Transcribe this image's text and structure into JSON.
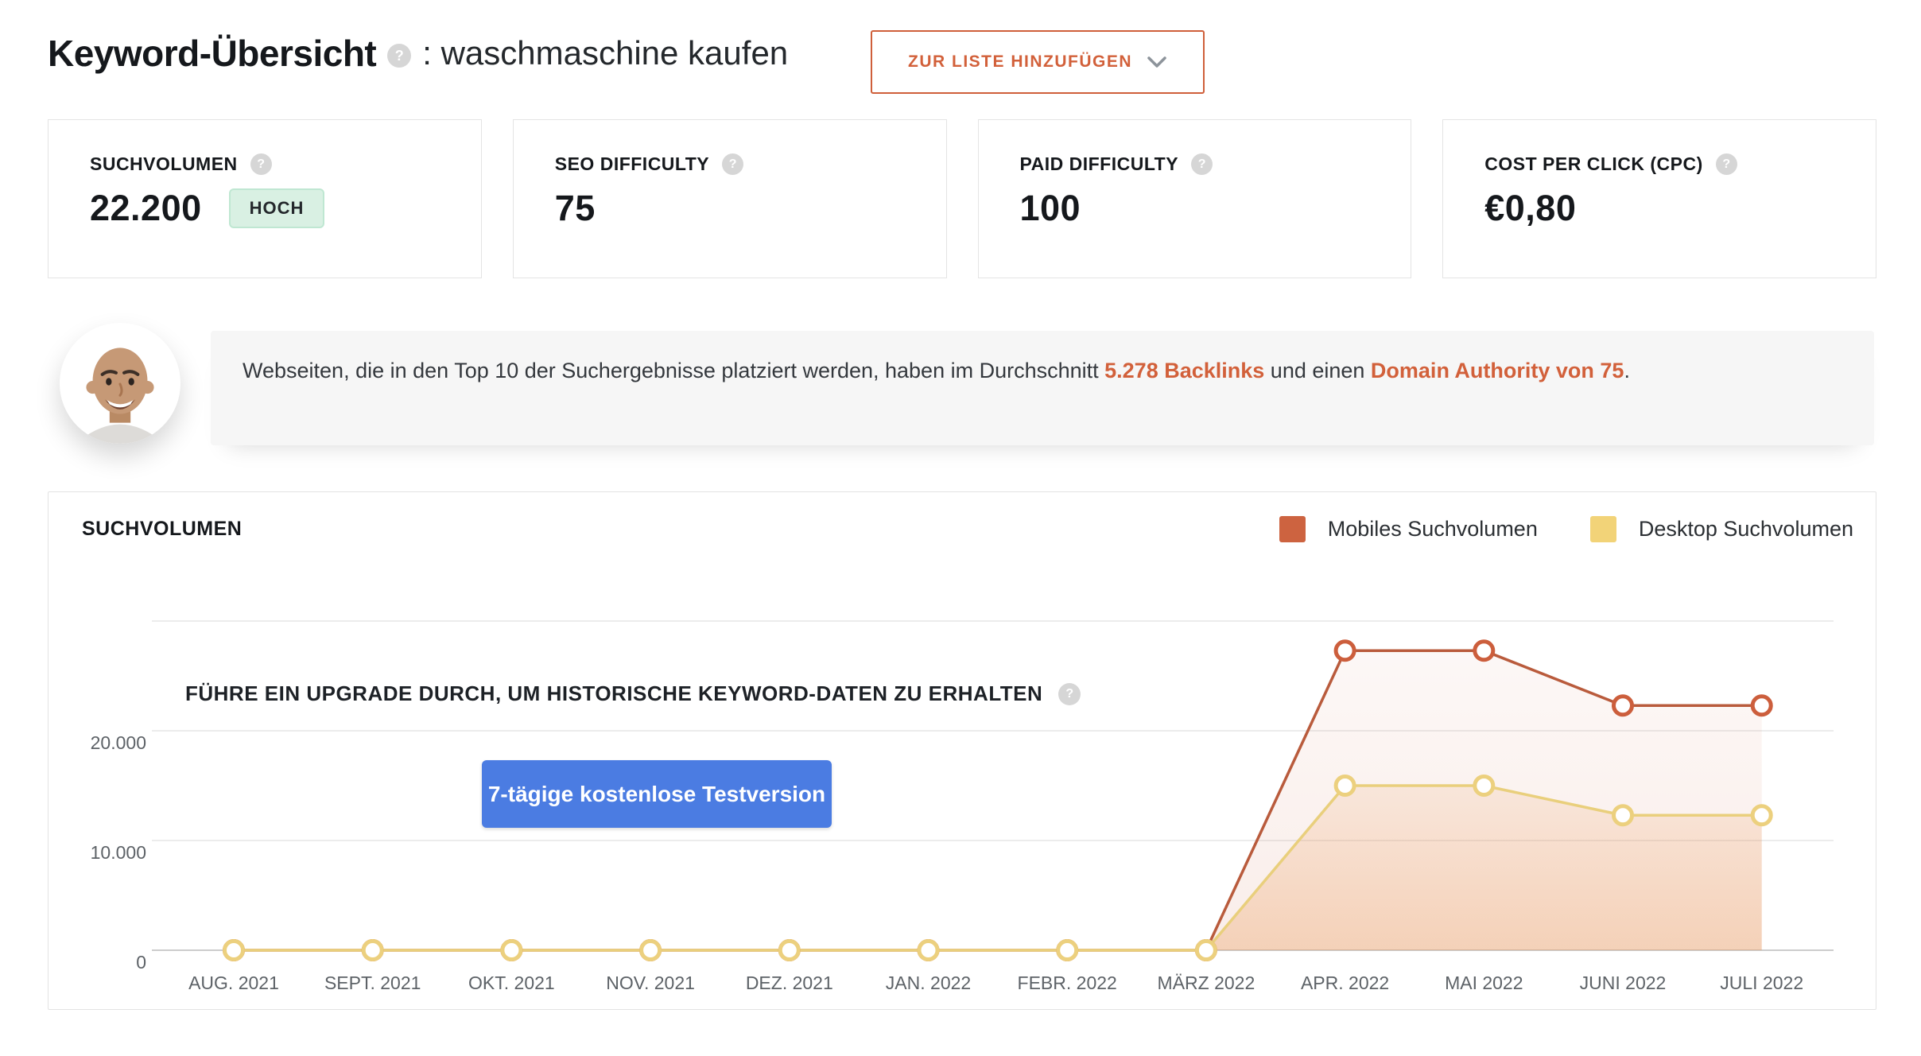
{
  "header": {
    "title": "Keyword-Übersicht",
    "keyword_part": ": waschmaschine kaufen",
    "help_icon": "?",
    "add_button": {
      "label": "ZUR LISTE HINZUFÜGEN",
      "chevron_icon": "chevron-down"
    }
  },
  "metric_cards": [
    {
      "label": "SUCHVOLUMEN",
      "help_icon": "?",
      "value": "22.200",
      "badge": "HOCH"
    },
    {
      "label": "SEO DIFFICULTY",
      "help_icon": "?",
      "value": "75"
    },
    {
      "label": "PAID DIFFICULTY",
      "help_icon": "?",
      "value": "100"
    },
    {
      "label": "COST PER CLICK (CPC)",
      "help_icon": "?",
      "value": "€0,80"
    }
  ],
  "tip": {
    "text_before": "Webseiten, die in den Top 10 der Suchergebnisse platziert werden, haben im Durchschnitt ",
    "link_backlinks": "5.278 Backlinks",
    "text_middle": " und einen ",
    "link_domain": "Domain Authority von 75",
    "text_after": "."
  },
  "chart_panel": {
    "title": "SUCHVOLUMEN",
    "legend": [
      {
        "label": "Mobiles Suchvolumen",
        "color": "#cd6340"
      },
      {
        "label": "Desktop Suchvolumen",
        "color": "#f2d378"
      }
    ],
    "upgrade": {
      "headline": "FÜHRE EIN UPGRADE DURCH, UM HISTORISCHE KEYWORD-DATEN ZU ERHALTEN",
      "help_icon": "?",
      "button_label": "7-tägige kostenlose Testversion"
    },
    "chart_data": {
      "type": "line",
      "categories": [
        "AUG. 2021",
        "SEPT. 2021",
        "OKT. 2021",
        "NOV. 2021",
        "DEZ. 2021",
        "JAN. 2022",
        "FEBR. 2022",
        "MÄRZ 2022",
        "APR. 2022",
        "MAI 2022",
        "JUNI 2022",
        "JULI 2022"
      ],
      "series": [
        {
          "name": "Mobiles Suchvolumen",
          "line_color": "#b95b3c",
          "point_color": "#cc5e3c",
          "values": [
            0,
            0,
            0,
            0,
            0,
            0,
            0,
            0,
            27300,
            27300,
            22300,
            22300
          ]
        },
        {
          "name": "Desktop Suchvolumen",
          "line_color": "#e9cf7c",
          "point_color": "#ecd07e",
          "values": [
            0,
            0,
            0,
            0,
            0,
            0,
            0,
            0,
            15000,
            15000,
            12300,
            12300
          ]
        }
      ],
      "y_ticks": [
        {
          "value": 0,
          "label": "0"
        },
        {
          "value": 10000,
          "label": "10.000"
        },
        {
          "value": 20000,
          "label": "20.000"
        }
      ],
      "ylim": [
        0,
        30000
      ],
      "grid": true,
      "legend_position": "top-right",
      "area_fill": true
    }
  }
}
